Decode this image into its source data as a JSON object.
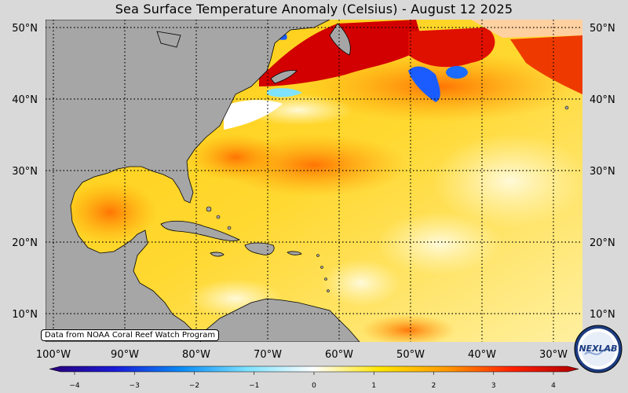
{
  "title": "Sea Surface Temperature Anomaly (Celsius) - August 12 2025",
  "credit": "Data from NOAA Coral Reef Watch Program",
  "logo_text": "NEXLAB",
  "lat_labels": [
    "50°N",
    "40°N",
    "30°N",
    "20°N",
    "10°N"
  ],
  "lon_labels": [
    "100°W",
    "90°W",
    "80°W",
    "70°W",
    "60°W",
    "50°W",
    "40°W",
    "30°W"
  ],
  "colorbar": {
    "ticks": [
      "−4",
      "−3",
      "−2",
      "−1",
      "0",
      "1",
      "2",
      "3",
      "4"
    ],
    "range": [
      -4,
      4
    ],
    "colors": [
      "#2a0078",
      "#1a1ad9",
      "#0a8cf5",
      "#7fe3ff",
      "#ffffff",
      "#ffe600",
      "#ff9a00",
      "#ff2000",
      "#b00000"
    ]
  },
  "colors": {
    "land": "#a6a6a6",
    "ocean_warm": "#ffd21f",
    "ocean_hot": "#ff7a00",
    "ocean_very_hot": "#d80000",
    "ocean_cold": "#1a7bff",
    "background": "#d9d9d9"
  }
}
